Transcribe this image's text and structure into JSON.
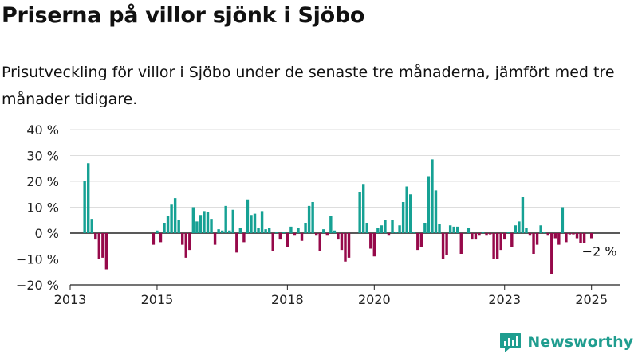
{
  "title": "Priserna på villor sjönk i Sjöbo",
  "subtitle": "Prisutveckling för villor i Sjöbo under de senaste tre månaderna, jämfört med tre månader tidigare.",
  "brand": {
    "name": "Newsworthy",
    "icon": "newsworthy-logo-icon"
  },
  "colors": {
    "positive": "#16a194",
    "negative": "#96094a",
    "grid": "#dddddd",
    "axis": "#222222",
    "brand": "#1f9d8f"
  },
  "chart_data": {
    "type": "bar",
    "x_start": "2013-01",
    "x_end": "2025-09",
    "xticks": [
      {
        "label": "2013",
        "value": "2013-01"
      },
      {
        "label": "2015",
        "value": "2015-01"
      },
      {
        "label": "2018",
        "value": "2018-01"
      },
      {
        "label": "2020",
        "value": "2020-01"
      },
      {
        "label": "2023",
        "value": "2023-01"
      },
      {
        "label": "2025",
        "value": "2025-01"
      }
    ],
    "yticks": [
      -20,
      -10,
      0,
      10,
      20,
      30,
      40
    ],
    "ytick_labels": [
      "−20 %",
      "−10 %",
      "0 %",
      "10 %",
      "20 %",
      "30 %",
      "40 %"
    ],
    "ylim": [
      -20,
      40
    ],
    "grid": true,
    "annotation": {
      "text": "−2 %",
      "x": "2025-01",
      "y": -2
    },
    "bars": [
      {
        "x": "2013-05",
        "y": 20
      },
      {
        "x": "2013-06",
        "y": 27
      },
      {
        "x": "2013-07",
        "y": 5.5
      },
      {
        "x": "2013-08",
        "y": -2.5
      },
      {
        "x": "2013-09",
        "y": -10
      },
      {
        "x": "2013-10",
        "y": -9.5
      },
      {
        "x": "2013-11",
        "y": -14
      },
      {
        "x": "2014-12",
        "y": -4.5
      },
      {
        "x": "2015-01",
        "y": 1
      },
      {
        "x": "2015-02",
        "y": -3.5
      },
      {
        "x": "2015-03",
        "y": 4
      },
      {
        "x": "2015-04",
        "y": 6.5
      },
      {
        "x": "2015-05",
        "y": 11
      },
      {
        "x": "2015-06",
        "y": 13.5
      },
      {
        "x": "2015-07",
        "y": 5
      },
      {
        "x": "2015-08",
        "y": -4.5
      },
      {
        "x": "2015-09",
        "y": -9.5
      },
      {
        "x": "2015-10",
        "y": -6.5
      },
      {
        "x": "2015-11",
        "y": 10
      },
      {
        "x": "2015-12",
        "y": 4.5
      },
      {
        "x": "2016-01",
        "y": 7
      },
      {
        "x": "2016-02",
        "y": 8.5
      },
      {
        "x": "2016-03",
        "y": 8
      },
      {
        "x": "2016-04",
        "y": 5.5
      },
      {
        "x": "2016-05",
        "y": -4.5
      },
      {
        "x": "2016-06",
        "y": 1.5
      },
      {
        "x": "2016-07",
        "y": 1
      },
      {
        "x": "2016-08",
        "y": 10.5
      },
      {
        "x": "2016-09",
        "y": 1
      },
      {
        "x": "2016-10",
        "y": 9
      },
      {
        "x": "2016-11",
        "y": -7.5
      },
      {
        "x": "2016-12",
        "y": 2
      },
      {
        "x": "2017-01",
        "y": -3.5
      },
      {
        "x": "2017-02",
        "y": 13
      },
      {
        "x": "2017-03",
        "y": 7
      },
      {
        "x": "2017-04",
        "y": 7.5
      },
      {
        "x": "2017-05",
        "y": 2
      },
      {
        "x": "2017-06",
        "y": 8.5
      },
      {
        "x": "2017-07",
        "y": 1.5
      },
      {
        "x": "2017-08",
        "y": 2
      },
      {
        "x": "2017-09",
        "y": -7
      },
      {
        "x": "2017-10",
        "y": 0.5
      },
      {
        "x": "2017-11",
        "y": -2.5
      },
      {
        "x": "2017-12",
        "y": 0.5
      },
      {
        "x": "2018-01",
        "y": -5.5
      },
      {
        "x": "2018-02",
        "y": 2.5
      },
      {
        "x": "2018-03",
        "y": -1
      },
      {
        "x": "2018-04",
        "y": 2
      },
      {
        "x": "2018-05",
        "y": -3
      },
      {
        "x": "2018-06",
        "y": 4
      },
      {
        "x": "2018-07",
        "y": 10.5
      },
      {
        "x": "2018-08",
        "y": 12
      },
      {
        "x": "2018-09",
        "y": -1
      },
      {
        "x": "2018-10",
        "y": -7
      },
      {
        "x": "2018-11",
        "y": 1.5
      },
      {
        "x": "2018-12",
        "y": -1
      },
      {
        "x": "2019-01",
        "y": 6.5
      },
      {
        "x": "2019-02",
        "y": 1
      },
      {
        "x": "2019-03",
        "y": -2.5
      },
      {
        "x": "2019-04",
        "y": -6.5
      },
      {
        "x": "2019-05",
        "y": -11
      },
      {
        "x": "2019-06",
        "y": -9.5
      },
      {
        "x": "2019-09",
        "y": 16
      },
      {
        "x": "2019-10",
        "y": 19
      },
      {
        "x": "2019-11",
        "y": 4
      },
      {
        "x": "2019-12",
        "y": -6
      },
      {
        "x": "2020-01",
        "y": -9
      },
      {
        "x": "2020-02",
        "y": 2
      },
      {
        "x": "2020-03",
        "y": 3
      },
      {
        "x": "2020-04",
        "y": 5
      },
      {
        "x": "2020-05",
        "y": -1
      },
      {
        "x": "2020-06",
        "y": 5
      },
      {
        "x": "2020-07",
        "y": 0.5
      },
      {
        "x": "2020-08",
        "y": 3
      },
      {
        "x": "2020-09",
        "y": 12
      },
      {
        "x": "2020-10",
        "y": 18
      },
      {
        "x": "2020-11",
        "y": 15
      },
      {
        "x": "2020-12",
        "y": 0.5
      },
      {
        "x": "2021-01",
        "y": -6.5
      },
      {
        "x": "2021-02",
        "y": -5.5
      },
      {
        "x": "2021-03",
        "y": 4
      },
      {
        "x": "2021-04",
        "y": 22
      },
      {
        "x": "2021-05",
        "y": 28.5
      },
      {
        "x": "2021-06",
        "y": 16.5
      },
      {
        "x": "2021-07",
        "y": 3.5
      },
      {
        "x": "2021-08",
        "y": -10
      },
      {
        "x": "2021-09",
        "y": -8.5
      },
      {
        "x": "2021-10",
        "y": 3
      },
      {
        "x": "2021-11",
        "y": 2.5
      },
      {
        "x": "2021-12",
        "y": 2.5
      },
      {
        "x": "2022-01",
        "y": -8
      },
      {
        "x": "2022-03",
        "y": 2
      },
      {
        "x": "2022-04",
        "y": -2.5
      },
      {
        "x": "2022-05",
        "y": -2.5
      },
      {
        "x": "2022-06",
        "y": -1
      },
      {
        "x": "2022-07",
        "y": 0.5
      },
      {
        "x": "2022-08",
        "y": -1
      },
      {
        "x": "2022-09",
        "y": -0.5
      },
      {
        "x": "2022-10",
        "y": -10
      },
      {
        "x": "2022-11",
        "y": -10
      },
      {
        "x": "2022-12",
        "y": -6.5
      },
      {
        "x": "2023-01",
        "y": -2.5
      },
      {
        "x": "2023-02",
        "y": 0.5
      },
      {
        "x": "2023-03",
        "y": -5.5
      },
      {
        "x": "2023-04",
        "y": 3
      },
      {
        "x": "2023-05",
        "y": 4.5
      },
      {
        "x": "2023-06",
        "y": 14
      },
      {
        "x": "2023-07",
        "y": 2
      },
      {
        "x": "2023-08",
        "y": -1
      },
      {
        "x": "2023-09",
        "y": -8
      },
      {
        "x": "2023-10",
        "y": -4.5
      },
      {
        "x": "2023-11",
        "y": 3
      },
      {
        "x": "2023-12",
        "y": 0.5
      },
      {
        "x": "2024-01",
        "y": -1
      },
      {
        "x": "2024-02",
        "y": -16
      },
      {
        "x": "2024-03",
        "y": -2
      },
      {
        "x": "2024-04",
        "y": -4.5
      },
      {
        "x": "2024-05",
        "y": 10
      },
      {
        "x": "2024-06",
        "y": -3.5
      },
      {
        "x": "2024-07",
        "y": -0.5
      },
      {
        "x": "2024-08",
        "y": -0.5
      },
      {
        "x": "2024-09",
        "y": -2
      },
      {
        "x": "2024-10",
        "y": -4
      },
      {
        "x": "2024-11",
        "y": -4
      },
      {
        "x": "2025-01",
        "y": -2
      }
    ]
  }
}
